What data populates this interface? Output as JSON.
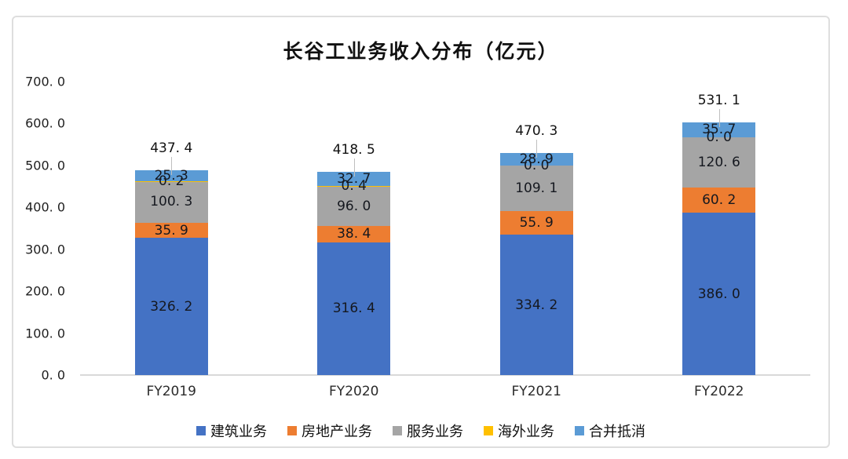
{
  "chart_data": {
    "type": "bar",
    "stacked": true,
    "title": "长谷工业务收入分布（亿元）",
    "categories": [
      "FY2019",
      "FY2020",
      "FY2021",
      "FY2022"
    ],
    "series": [
      {
        "name": "建筑业务",
        "color": "#4472C4",
        "values": [
          326.2,
          316.4,
          334.2,
          386.0
        ]
      },
      {
        "name": "房地产业务",
        "color": "#ED7D31",
        "values": [
          35.9,
          38.4,
          55.9,
          60.2
        ]
      },
      {
        "name": "服务业务",
        "color": "#A5A5A5",
        "values": [
          100.3,
          96.0,
          109.1,
          120.6
        ]
      },
      {
        "name": "海外业务",
        "color": "#FFC000",
        "values": [
          0.2,
          0.4,
          0.0,
          0.0
        ]
      },
      {
        "name": "合并抵消",
        "color": "#5B9BD5",
        "values": [
          25.3,
          32.7,
          28.9,
          35.7
        ]
      }
    ],
    "totals": [
      437.4,
      418.5,
      470.3,
      531.1
    ],
    "ylim": [
      0,
      700
    ],
    "ytick_step": 100,
    "grid": false,
    "legend_position": "bottom",
    "axis_line_color": "#d9d9d9",
    "label_color": "#15181f"
  }
}
